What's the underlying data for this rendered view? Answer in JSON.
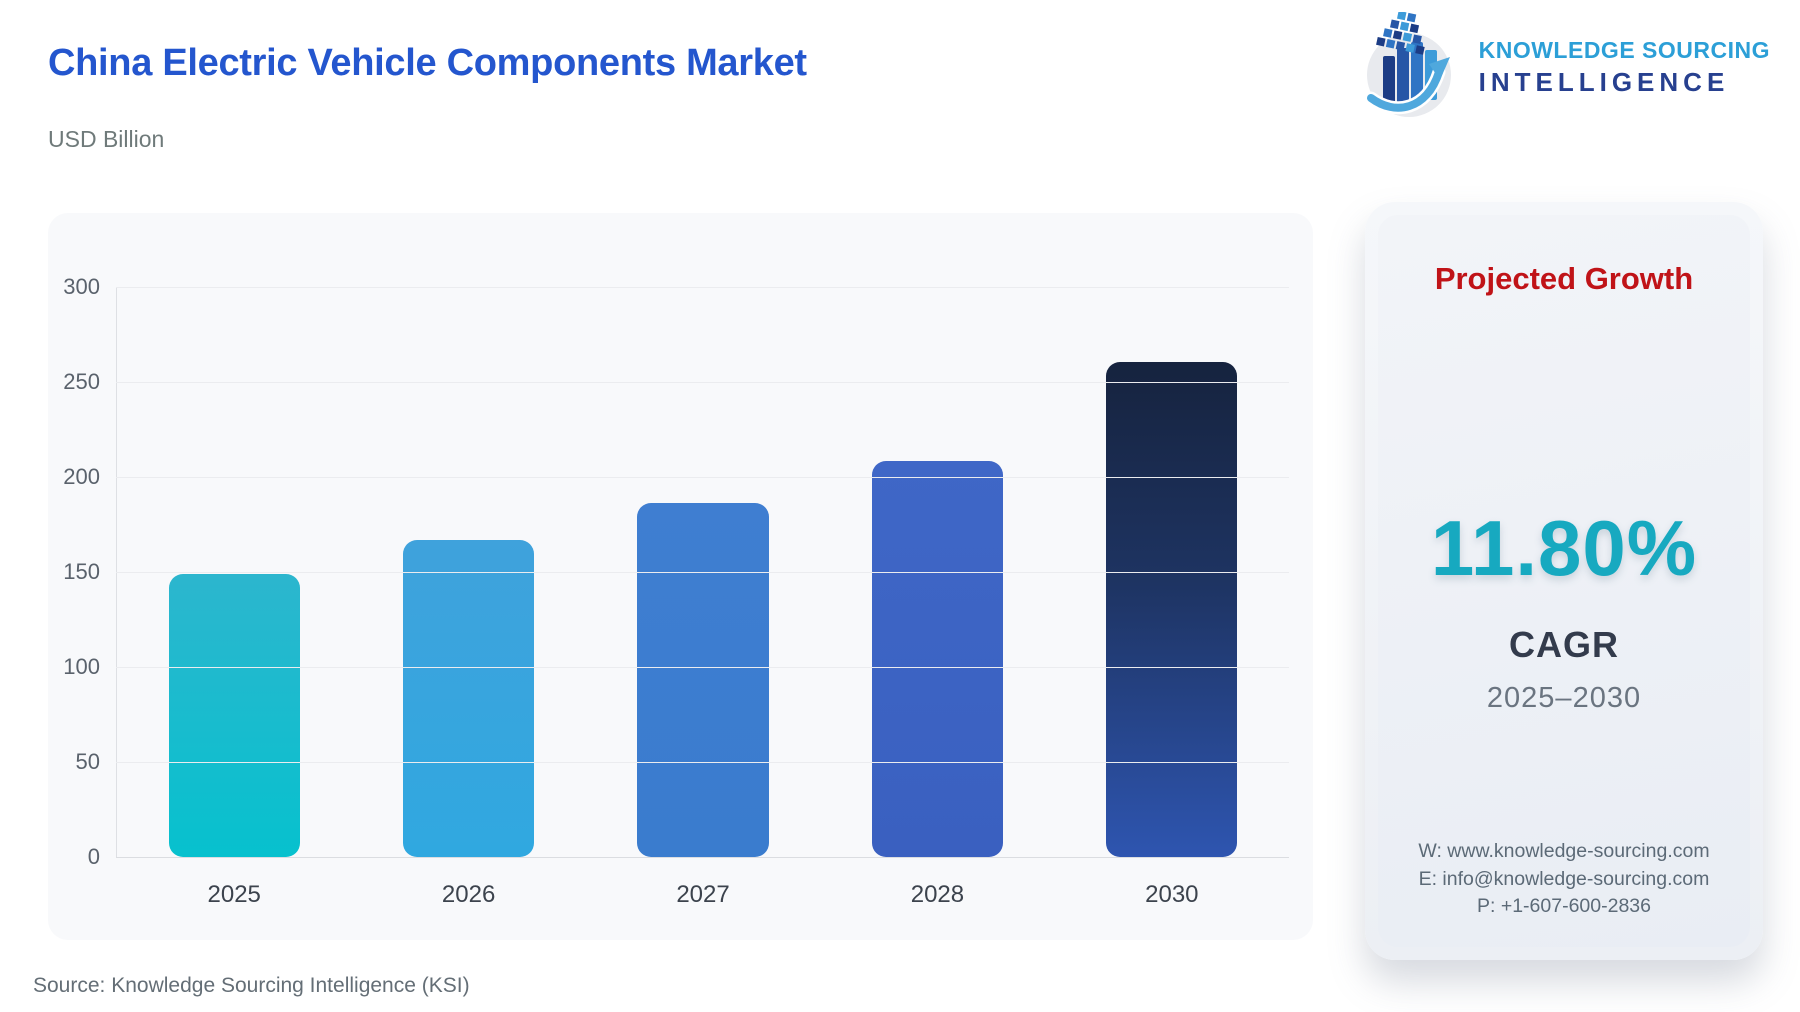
{
  "header": {
    "title": "China Electric Vehicle Components Market",
    "units": "USD Billion"
  },
  "logo": {
    "line1": "KNOWLEDGE SOURCING",
    "line2": "INTELLIGENCE"
  },
  "chart_data": {
    "type": "bar",
    "title": "China Electric Vehicle Components Market",
    "xlabel": "",
    "ylabel": "USD Billion",
    "categories": [
      "2025",
      "2026",
      "2027",
      "2028",
      "2030"
    ],
    "values": [
      149,
      166.6,
      186.2,
      208.2,
      260.3
    ],
    "ylim": [
      0,
      300
    ],
    "ytick_step": 50,
    "grid": true,
    "legend": false,
    "bar_colors": [
      "linear-gradient(180deg, #2CB6CE 0%, #07C1CE 100%)",
      "linear-gradient(180deg, #3FA2DC 0%, #30A8E0 100%)",
      "linear-gradient(180deg, #3F7ED1 0%, #3A7CCE 100%)",
      "linear-gradient(180deg, #3F67C7 0%, #3A60C0 100%)",
      "linear-gradient(180deg, #16233E 0%, #1E3463 45%, #2E55B0 100%)"
    ]
  },
  "growth_panel": {
    "title": "Projected Growth",
    "cagr_value": "11.80%",
    "cagr_label": "CAGR",
    "period": "2025–2030",
    "contact": {
      "website": "W: www.knowledge-sourcing.com",
      "email": "E: info@knowledge-sourcing.com",
      "phone": "P: +1-607-600-2836"
    }
  },
  "footer": {
    "source": "Source: Knowledge Sourcing Intelligence (KSI)"
  },
  "colors": {
    "title_blue": "#2456CE",
    "accent_red": "#C01318",
    "accent_teal": "#17A9C0",
    "logo_light_blue": "#2C9FD7",
    "logo_dark_blue": "#27408F",
    "chart_card_bg": "#F8F9FB",
    "growth_card_bg": "#EDF1F6"
  }
}
